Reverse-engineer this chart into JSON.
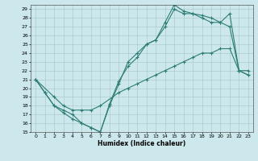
{
  "xlabel": "Humidex (Indice chaleur)",
  "bg_color": "#cce8ec",
  "grid_color": "#aacccc",
  "line_color": "#2e7d74",
  "xlim": [
    -0.5,
    23.5
  ],
  "ylim": [
    15,
    29.5
  ],
  "xticks": [
    0,
    1,
    2,
    3,
    4,
    5,
    6,
    7,
    8,
    9,
    10,
    11,
    12,
    13,
    14,
    15,
    16,
    17,
    18,
    19,
    20,
    21,
    22,
    23
  ],
  "yticks": [
    15,
    16,
    17,
    18,
    19,
    20,
    21,
    22,
    23,
    24,
    25,
    26,
    27,
    28,
    29
  ],
  "curve1_x": [
    0,
    1,
    2,
    3,
    4,
    5,
    6,
    7,
    8,
    9,
    10,
    11,
    12,
    13,
    14,
    15,
    16,
    17,
    18,
    19,
    20,
    21,
    22,
    23
  ],
  "curve1_y": [
    21,
    19.5,
    18,
    17.5,
    17,
    16,
    15.5,
    15,
    18,
    20.5,
    23,
    24,
    25,
    25.5,
    27.5,
    29.5,
    28.8,
    28.5,
    28.3,
    28,
    27.5,
    27,
    22,
    21.5
  ],
  "curve2_x": [
    0,
    1,
    2,
    3,
    4,
    5,
    6,
    7,
    8,
    9,
    10,
    11,
    12,
    13,
    14,
    15,
    16,
    17,
    18,
    19,
    20,
    21,
    22,
    23
  ],
  "curve2_y": [
    21,
    19.5,
    18,
    17.2,
    16.5,
    16,
    15.5,
    15,
    18.2,
    20.8,
    22.5,
    23.5,
    25,
    25.5,
    27,
    29,
    28.5,
    28.5,
    28,
    27.5,
    27.5,
    28.5,
    22,
    21.5
  ],
  "curve3_x": [
    0,
    2,
    3,
    4,
    5,
    6,
    7,
    9,
    10,
    11,
    12,
    13,
    14,
    15,
    16,
    17,
    18,
    19,
    20,
    21,
    22,
    23
  ],
  "curve3_y": [
    21,
    19,
    18,
    17.5,
    17.5,
    17.5,
    18,
    19.5,
    20,
    20.5,
    21,
    21.5,
    22,
    22.5,
    23,
    23.5,
    24,
    24,
    24.5,
    24.5,
    22,
    22
  ]
}
